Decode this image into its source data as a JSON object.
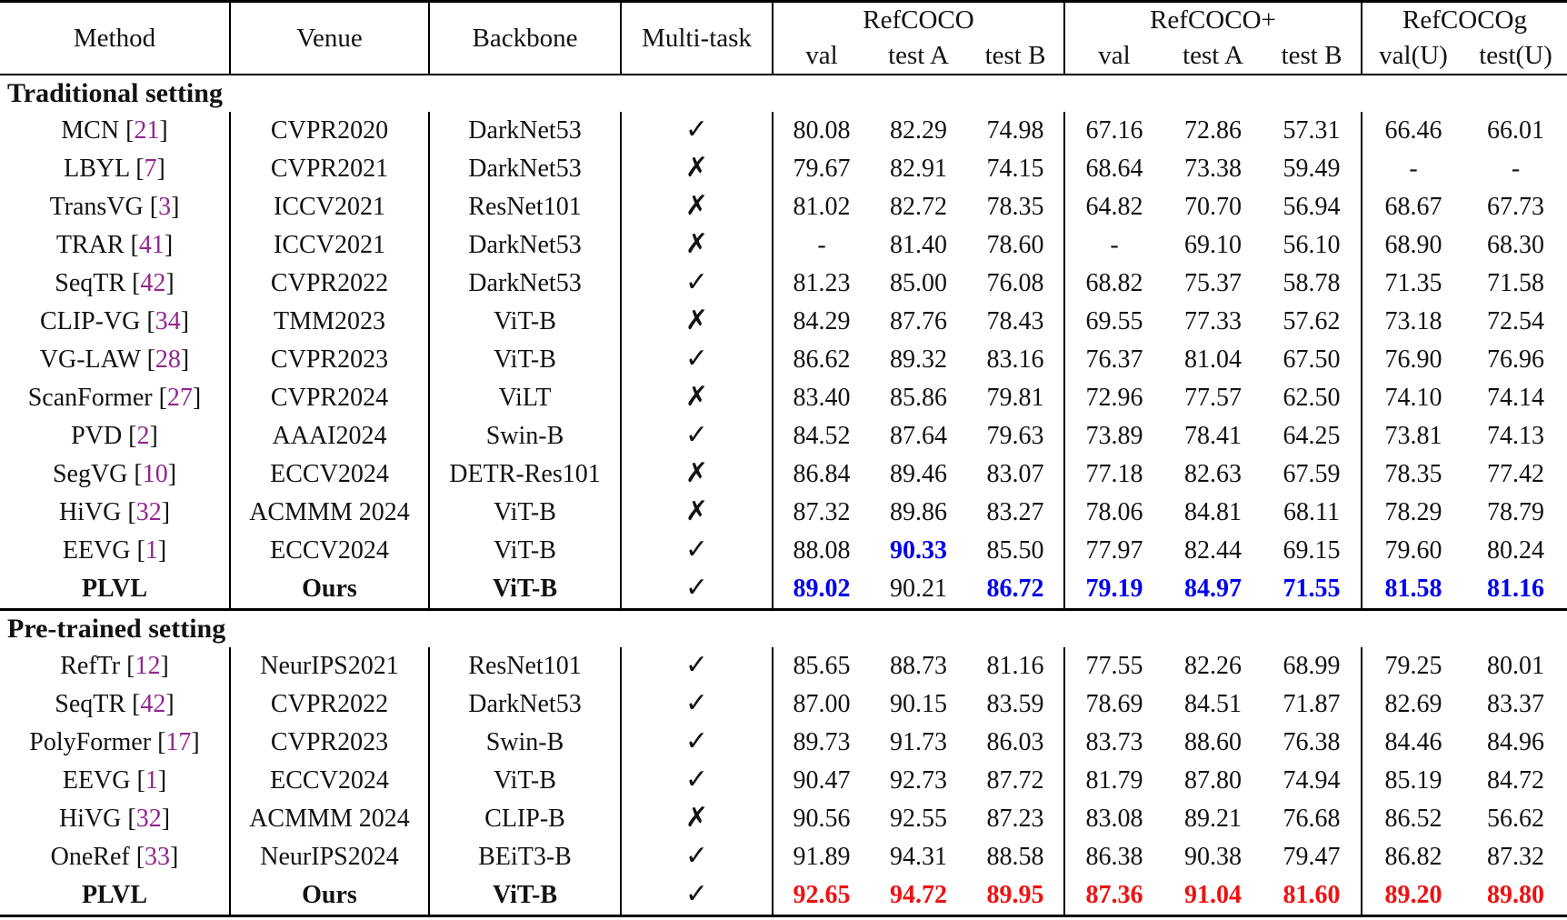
{
  "header": {
    "method": "Method",
    "venue": "Venue",
    "backbone": "Backbone",
    "multitask": "Multi-task",
    "groups": [
      {
        "label": "RefCOCO",
        "subs": [
          "val",
          "test A",
          "test B"
        ]
      },
      {
        "label": "RefCOCO+",
        "subs": [
          "val",
          "test A",
          "test B"
        ]
      },
      {
        "label": "RefCOCOg",
        "subs": [
          "val(U)",
          "test(U)"
        ]
      }
    ]
  },
  "marks": {
    "check": "✓",
    "cross": "✗"
  },
  "colors": {
    "citation": "#92268F",
    "best_traditional_blue": "#0000EE",
    "best_pretrained_red": "#EE1111"
  },
  "sections": [
    {
      "title": "Traditional setting",
      "highlight_style": "best-trad",
      "rows": [
        {
          "method": "MCN",
          "cite": "21",
          "venue": "CVPR2020",
          "backbone": "DarkNet53",
          "multitask": "check",
          "emph": false,
          "vals": [
            "80.08",
            "82.29",
            "74.98",
            "67.16",
            "72.86",
            "57.31",
            "66.46",
            "66.01"
          ],
          "styles": [
            "",
            "",
            "",
            "",
            "",
            "",
            "",
            ""
          ]
        },
        {
          "method": "LBYL",
          "cite": "7",
          "venue": "CVPR2021",
          "backbone": "DarkNet53",
          "multitask": "cross",
          "emph": false,
          "vals": [
            "79.67",
            "82.91",
            "74.15",
            "68.64",
            "73.38",
            "59.49",
            "-",
            "-"
          ],
          "styles": [
            "",
            "",
            "",
            "",
            "",
            "",
            "",
            ""
          ]
        },
        {
          "method": "TransVG",
          "cite": "3",
          "venue": "ICCV2021",
          "backbone": "ResNet101",
          "multitask": "cross",
          "emph": false,
          "vals": [
            "81.02",
            "82.72",
            "78.35",
            "64.82",
            "70.70",
            "56.94",
            "68.67",
            "67.73"
          ],
          "styles": [
            "",
            "",
            "",
            "",
            "",
            "",
            "",
            ""
          ]
        },
        {
          "method": "TRAR",
          "cite": "41",
          "venue": "ICCV2021",
          "backbone": "DarkNet53",
          "multitask": "cross",
          "emph": false,
          "vals": [
            "-",
            "81.40",
            "78.60",
            "-",
            "69.10",
            "56.10",
            "68.90",
            "68.30"
          ],
          "styles": [
            "",
            "",
            "",
            "",
            "",
            "",
            "",
            ""
          ]
        },
        {
          "method": "SeqTR",
          "cite": "42",
          "venue": "CVPR2022",
          "backbone": "DarkNet53",
          "multitask": "check",
          "emph": false,
          "vals": [
            "81.23",
            "85.00",
            "76.08",
            "68.82",
            "75.37",
            "58.78",
            "71.35",
            "71.58"
          ],
          "styles": [
            "",
            "",
            "",
            "",
            "",
            "",
            "",
            ""
          ]
        },
        {
          "method": "CLIP-VG",
          "cite": "34",
          "venue": "TMM2023",
          "backbone": "ViT-B",
          "multitask": "cross",
          "emph": false,
          "vals": [
            "84.29",
            "87.76",
            "78.43",
            "69.55",
            "77.33",
            "57.62",
            "73.18",
            "72.54"
          ],
          "styles": [
            "",
            "",
            "",
            "",
            "",
            "",
            "",
            ""
          ]
        },
        {
          "method": "VG-LAW",
          "cite": "28",
          "venue": "CVPR2023",
          "backbone": "ViT-B",
          "multitask": "check",
          "emph": false,
          "vals": [
            "86.62",
            "89.32",
            "83.16",
            "76.37",
            "81.04",
            "67.50",
            "76.90",
            "76.96"
          ],
          "styles": [
            "",
            "",
            "",
            "",
            "",
            "",
            "",
            ""
          ]
        },
        {
          "method": "ScanFormer",
          "cite": "27",
          "venue": "CVPR2024",
          "backbone": "ViLT",
          "multitask": "cross",
          "emph": false,
          "vals": [
            "83.40",
            "85.86",
            "79.81",
            "72.96",
            "77.57",
            "62.50",
            "74.10",
            "74.14"
          ],
          "styles": [
            "",
            "",
            "",
            "",
            "",
            "",
            "",
            ""
          ]
        },
        {
          "method": "PVD",
          "cite": "2",
          "venue": "AAAI2024",
          "backbone": "Swin-B",
          "multitask": "check",
          "emph": false,
          "vals": [
            "84.52",
            "87.64",
            "79.63",
            "73.89",
            "78.41",
            "64.25",
            "73.81",
            "74.13"
          ],
          "styles": [
            "",
            "",
            "",
            "",
            "",
            "",
            "",
            ""
          ]
        },
        {
          "method": "SegVG",
          "cite": "10",
          "venue": "ECCV2024",
          "backbone": "DETR-Res101",
          "multitask": "cross",
          "emph": false,
          "vals": [
            "86.84",
            "89.46",
            "83.07",
            "77.18",
            "82.63",
            "67.59",
            "78.35",
            "77.42"
          ],
          "styles": [
            "",
            "",
            "",
            "",
            "",
            "",
            "",
            ""
          ]
        },
        {
          "method": "HiVG",
          "cite": "32",
          "venue": "ACMMM 2024",
          "backbone": "ViT-B",
          "multitask": "cross",
          "emph": false,
          "vals": [
            "87.32",
            "89.86",
            "83.27",
            "78.06",
            "84.81",
            "68.11",
            "78.29",
            "78.79"
          ],
          "styles": [
            "",
            "",
            "",
            "",
            "",
            "",
            "",
            ""
          ]
        },
        {
          "method": "EEVG",
          "cite": "1",
          "venue": "ECCV2024",
          "backbone": "ViT-B",
          "multitask": "check",
          "emph": false,
          "vals": [
            "88.08",
            "90.33",
            "85.50",
            "77.97",
            "82.44",
            "69.15",
            "79.60",
            "80.24"
          ],
          "styles": [
            "",
            "best-trad",
            "",
            "",
            "",
            "",
            "",
            ""
          ]
        },
        {
          "method": "PLVL",
          "cite": "",
          "venue": "Ours",
          "backbone": "ViT-B",
          "multitask": "check",
          "emph": true,
          "vals": [
            "89.02",
            "90.21",
            "86.72",
            "79.19",
            "84.97",
            "71.55",
            "81.58",
            "81.16"
          ],
          "styles": [
            "best-trad",
            "",
            "best-trad",
            "best-trad",
            "best-trad",
            "best-trad",
            "best-trad",
            "best-trad"
          ]
        }
      ]
    },
    {
      "title": "Pre-trained setting",
      "highlight_style": "best-pre",
      "rows": [
        {
          "method": "RefTr",
          "cite": "12",
          "venue": "NeurIPS2021",
          "backbone": "ResNet101",
          "multitask": "check",
          "emph": false,
          "vals": [
            "85.65",
            "88.73",
            "81.16",
            "77.55",
            "82.26",
            "68.99",
            "79.25",
            "80.01"
          ],
          "styles": [
            "",
            "",
            "",
            "",
            "",
            "",
            "",
            ""
          ]
        },
        {
          "method": "SeqTR",
          "cite": "42",
          "venue": "CVPR2022",
          "backbone": "DarkNet53",
          "multitask": "check",
          "emph": false,
          "vals": [
            "87.00",
            "90.15",
            "83.59",
            "78.69",
            "84.51",
            "71.87",
            "82.69",
            "83.37"
          ],
          "styles": [
            "",
            "",
            "",
            "",
            "",
            "",
            "",
            ""
          ]
        },
        {
          "method": "PolyFormer",
          "cite": "17",
          "venue": "CVPR2023",
          "backbone": "Swin-B",
          "multitask": "check",
          "emph": false,
          "vals": [
            "89.73",
            "91.73",
            "86.03",
            "83.73",
            "88.60",
            "76.38",
            "84.46",
            "84.96"
          ],
          "styles": [
            "",
            "",
            "",
            "",
            "",
            "",
            "",
            ""
          ]
        },
        {
          "method": "EEVG",
          "cite": "1",
          "venue": "ECCV2024",
          "backbone": "ViT-B",
          "multitask": "check",
          "emph": false,
          "vals": [
            "90.47",
            "92.73",
            "87.72",
            "81.79",
            "87.80",
            "74.94",
            "85.19",
            "84.72"
          ],
          "styles": [
            "",
            "",
            "",
            "",
            "",
            "",
            "",
            ""
          ]
        },
        {
          "method": "HiVG",
          "cite": "32",
          "venue": "ACMMM 2024",
          "backbone": "CLIP-B",
          "multitask": "cross",
          "emph": false,
          "vals": [
            "90.56",
            "92.55",
            "87.23",
            "83.08",
            "89.21",
            "76.68",
            "86.52",
            "56.62"
          ],
          "styles": [
            "",
            "",
            "",
            "",
            "",
            "",
            "",
            ""
          ]
        },
        {
          "method": "OneRef",
          "cite": "33",
          "venue": "NeurIPS2024",
          "backbone": "BEiT3-B",
          "multitask": "check",
          "emph": false,
          "vals": [
            "91.89",
            "94.31",
            "88.58",
            "86.38",
            "90.38",
            "79.47",
            "86.82",
            "87.32"
          ],
          "styles": [
            "",
            "",
            "",
            "",
            "",
            "",
            "",
            ""
          ]
        },
        {
          "method": "PLVL",
          "cite": "",
          "venue": "Ours",
          "backbone": "ViT-B",
          "multitask": "check",
          "emph": true,
          "vals": [
            "92.65",
            "94.72",
            "89.95",
            "87.36",
            "91.04",
            "81.60",
            "89.20",
            "89.80"
          ],
          "styles": [
            "best-pre",
            "best-pre",
            "best-pre",
            "best-pre",
            "best-pre",
            "best-pre",
            "best-pre",
            "best-pre"
          ]
        }
      ]
    }
  ]
}
